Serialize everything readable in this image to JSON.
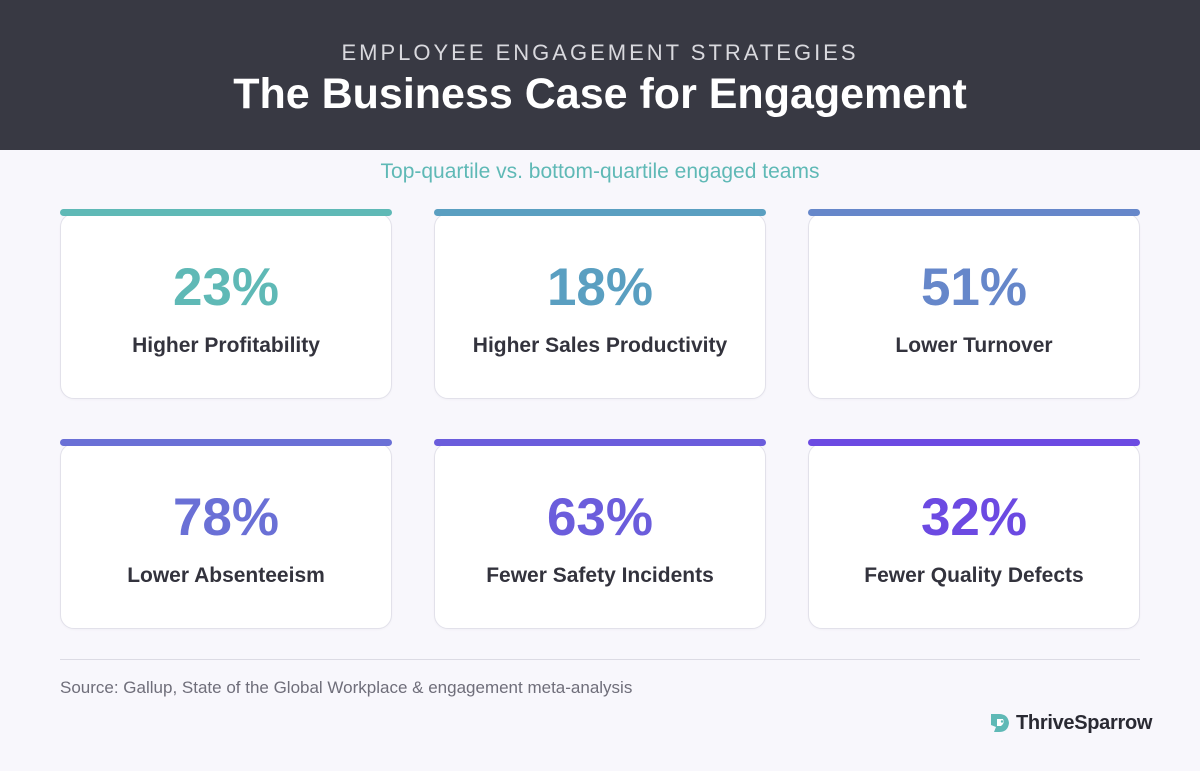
{
  "header": {
    "eyebrow": "EMPLOYEE ENGAGEMENT STRATEGIES",
    "title": "The Business Case for Engagement"
  },
  "subtitle": "Top-quartile vs. bottom-quartile engaged teams",
  "stats": [
    {
      "value": "23%",
      "label": "Higher Profitability",
      "color": "#5fb9b6"
    },
    {
      "value": "18%",
      "label": "Higher Sales Productivity",
      "color": "#5a9fc1"
    },
    {
      "value": "51%",
      "label": "Lower Turnover",
      "color": "#6687ca"
    },
    {
      "value": "78%",
      "label": "Lower Absenteeism",
      "color": "#6a70d6"
    },
    {
      "value": "63%",
      "label": "Fewer Safety Incidents",
      "color": "#6b5ddc"
    },
    {
      "value": "32%",
      "label": "Fewer Quality Defects",
      "color": "#6c4ae2"
    }
  ],
  "source": "Source: Gallup, State of the Global Workplace & engagement meta-analysis",
  "logo": {
    "text": "ThriveSparrow",
    "icon": "sparrow-logo-icon",
    "color": "#5fb9b6"
  }
}
